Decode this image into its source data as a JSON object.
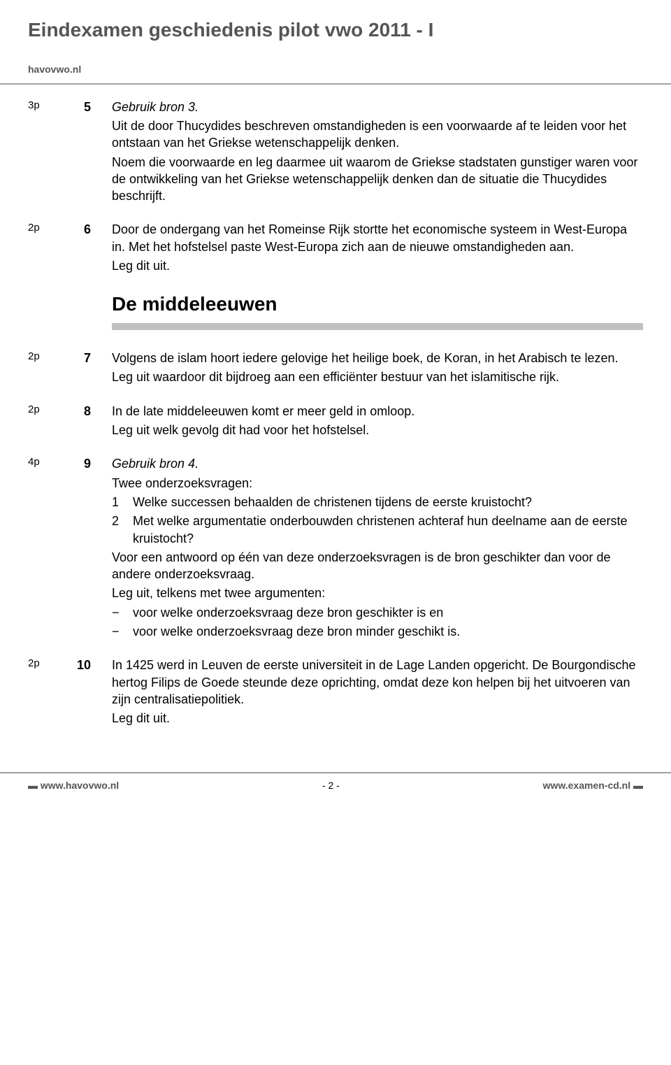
{
  "header": {
    "title": "Eindexamen geschiedenis pilot vwo 2011 - I",
    "site": "havovwo.nl"
  },
  "questions": [
    {
      "points": "3p",
      "num": "5",
      "paras": [
        {
          "style": "italic",
          "text": "Gebruik bron 3."
        },
        {
          "text": "Uit de door Thucydides beschreven omstandigheden is een voorwaarde af te leiden voor het ontstaan van het Griekse wetenschappelijk denken."
        },
        {
          "text": "Noem die voorwaarde en leg daarmee uit waarom de Griekse stadstaten gunstiger waren voor de ontwikkeling van het Griekse wetenschappelijk denken dan de situatie die Thucydides beschrijft."
        }
      ]
    },
    {
      "points": "2p",
      "num": "6",
      "paras": [
        {
          "text": "Door de ondergang van het Romeinse Rijk stortte het economische systeem in West-Europa in. Met het hofstelsel paste West-Europa zich aan de nieuwe omstandigheden aan."
        },
        {
          "text": "Leg dit uit."
        }
      ]
    }
  ],
  "section": {
    "title": "De middeleeuwen"
  },
  "questions2": [
    {
      "points": "2p",
      "num": "7",
      "paras": [
        {
          "text": "Volgens de islam hoort iedere gelovige het heilige boek, de Koran, in het Arabisch te lezen."
        },
        {
          "text": "Leg uit waardoor dit bijdroeg aan een efficiënter bestuur van het islamitische rijk."
        }
      ]
    },
    {
      "points": "2p",
      "num": "8",
      "paras": [
        {
          "text": "In de late middeleeuwen komt er meer geld in omloop."
        },
        {
          "text": "Leg uit welk gevolg dit had voor het hofstelsel."
        }
      ]
    },
    {
      "points": "4p",
      "num": "9",
      "paras": [
        {
          "style": "italic",
          "text": "Gebruik bron 4."
        },
        {
          "text": "Twee onderzoeksvragen:"
        }
      ],
      "numbered": [
        {
          "n": "1",
          "t": "Welke successen behaalden de christenen tijdens de eerste kruistocht?"
        },
        {
          "n": "2",
          "t": "Met welke argumentatie onderbouwden christenen achteraf hun deelname aan de eerste kruistocht?"
        }
      ],
      "paras2": [
        {
          "text": "Voor een antwoord op één van deze onderzoeksvragen is de bron geschikter dan voor de andere onderzoeksvraag."
        },
        {
          "text": "Leg uit, telkens met twee argumenten:"
        }
      ],
      "dashes": [
        "voor welke onderzoeksvraag deze bron geschikter is en",
        "voor welke onderzoeksvraag deze bron minder geschikt is."
      ]
    },
    {
      "points": "2p",
      "num": "10",
      "paras": [
        {
          "text": "In 1425 werd in Leuven de eerste universiteit in de Lage Landen opgericht. De Bourgondische hertog Filips de Goede steunde deze oprichting, omdat deze kon helpen bij het uitvoeren van zijn centralisatiepolitiek."
        },
        {
          "text": "Leg dit uit."
        }
      ]
    }
  ],
  "footer": {
    "left": "www.havovwo.nl",
    "center": "- 2 -",
    "right": "www.examen-cd.nl"
  }
}
